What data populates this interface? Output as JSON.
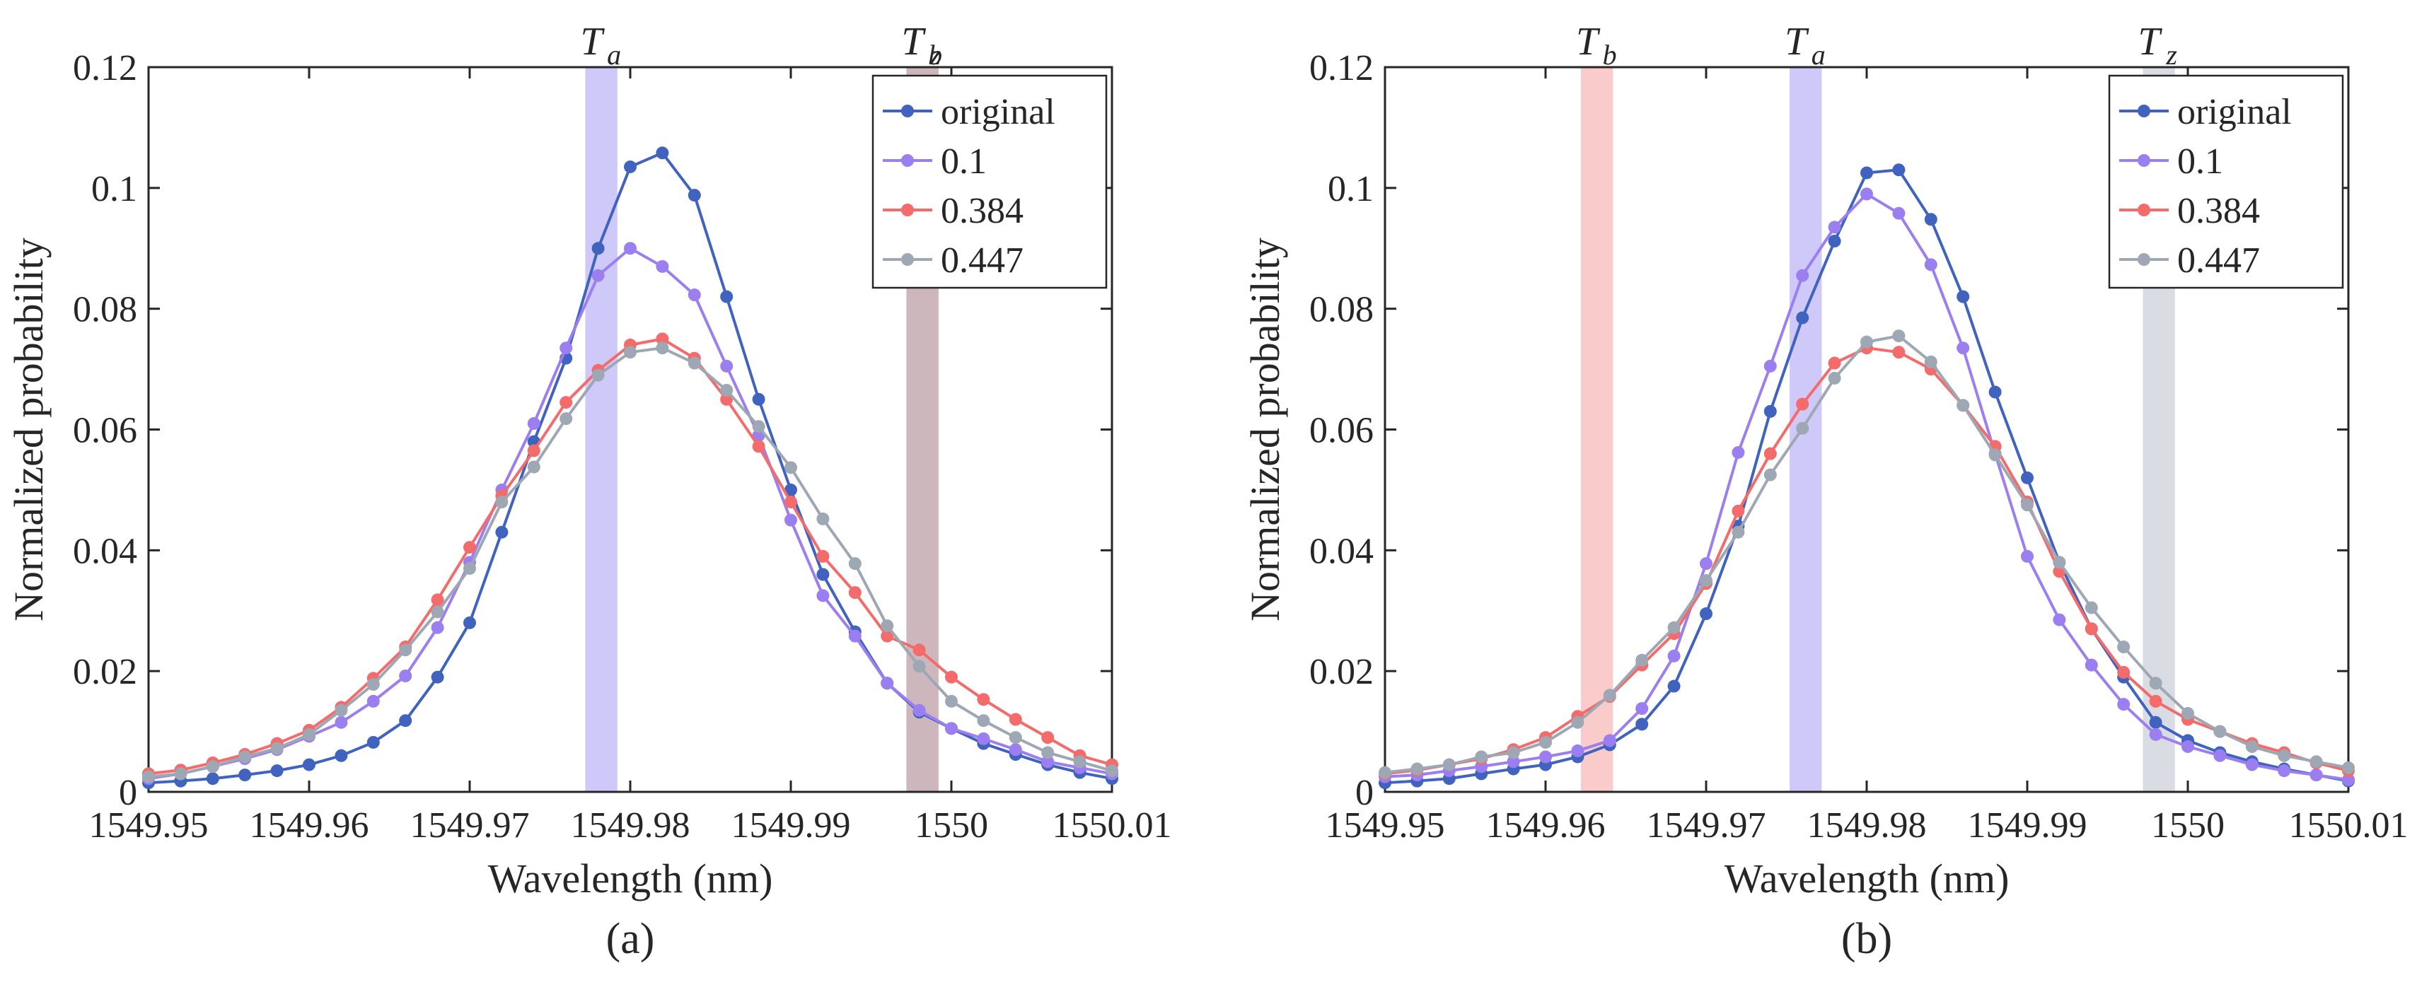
{
  "chart_data": [
    {
      "type": "line",
      "panel_label": "(a)",
      "xlabel": "Wavelength (nm)",
      "ylabel": "Normalized probability",
      "xlim": [
        1549.95,
        1550.01
      ],
      "ylim": [
        0,
        0.12
      ],
      "x_ticks": [
        "1549.95",
        "1549.96",
        "1549.97",
        "1549.98",
        "1549.99",
        "1550",
        "1550.01"
      ],
      "y_ticks": [
        "0",
        "0.02",
        "0.04",
        "0.06",
        "0.08",
        "0.1",
        "0.12"
      ],
      "legend_position": "top-right",
      "x": [
        1549.95,
        1549.952,
        1549.954,
        1549.956,
        1549.958,
        1549.96,
        1549.962,
        1549.964,
        1549.966,
        1549.968,
        1549.97,
        1549.972,
        1549.974,
        1549.976,
        1549.978,
        1549.98,
        1549.982,
        1549.984,
        1549.986,
        1549.988,
        1549.99,
        1549.992,
        1549.994,
        1549.996,
        1549.998,
        1550.0,
        1550.002,
        1550.004,
        1550.006,
        1550.008,
        1550.01
      ],
      "series": [
        {
          "name": "original",
          "color": "#4063c0",
          "values": [
            0.0015,
            0.0018,
            0.0022,
            0.0028,
            0.0035,
            0.0045,
            0.006,
            0.0082,
            0.0118,
            0.019,
            0.028,
            0.043,
            0.058,
            0.0718,
            0.09,
            0.1035,
            0.1058,
            0.0988,
            0.082,
            0.065,
            0.05,
            0.036,
            0.0265,
            0.018,
            0.0132,
            0.0105,
            0.008,
            0.0062,
            0.0045,
            0.0032,
            0.0022
          ]
        },
        {
          "name": "0.1",
          "color": "#9b7ff0",
          "values": [
            0.0022,
            0.003,
            0.0042,
            0.0055,
            0.007,
            0.0092,
            0.0115,
            0.015,
            0.0192,
            0.0272,
            0.038,
            0.05,
            0.061,
            0.0735,
            0.0855,
            0.09,
            0.087,
            0.0823,
            0.0705,
            0.059,
            0.045,
            0.0325,
            0.0258,
            0.018,
            0.0135,
            0.0105,
            0.0088,
            0.007,
            0.005,
            0.004,
            0.003
          ]
        },
        {
          "name": "0.384",
          "color": "#f36b6b",
          "values": [
            0.003,
            0.0036,
            0.0048,
            0.0062,
            0.008,
            0.0102,
            0.014,
            0.0188,
            0.024,
            0.0318,
            0.0405,
            0.049,
            0.0565,
            0.0645,
            0.0698,
            0.074,
            0.075,
            0.0718,
            0.065,
            0.0572,
            0.048,
            0.039,
            0.033,
            0.0258,
            0.0235,
            0.019,
            0.0153,
            0.012,
            0.009,
            0.006,
            0.0045
          ]
        },
        {
          "name": "0.447",
          "color": "#9ea7b4",
          "values": [
            0.0025,
            0.003,
            0.0042,
            0.0058,
            0.0072,
            0.0095,
            0.0135,
            0.0178,
            0.0235,
            0.0298,
            0.037,
            0.048,
            0.0538,
            0.0618,
            0.069,
            0.0728,
            0.0735,
            0.071,
            0.0665,
            0.0605,
            0.0537,
            0.0452,
            0.0378,
            0.0275,
            0.0208,
            0.015,
            0.0118,
            0.009,
            0.0065,
            0.005,
            0.0035
          ]
        }
      ],
      "bands": [
        {
          "label": "T",
          "sub": "a",
          "x_start": 1549.9772,
          "x_end": 1549.9792,
          "color": "#c7bff8"
        },
        {
          "label": "T",
          "sub": "b",
          "x_start": 1549.9972,
          "x_end": 1549.9992,
          "color": "#f9c2c2"
        },
        {
          "label": "T",
          "sub": "z",
          "x_start": 1549.9972,
          "x_end": 1549.9992,
          "color": "#c4b4ba"
        }
      ]
    },
    {
      "type": "line",
      "panel_label": "(b)",
      "xlabel": "Wavelength (nm)",
      "ylabel": "Normalized probability",
      "xlim": [
        1549.95,
        1550.01
      ],
      "ylim": [
        0,
        0.12
      ],
      "x_ticks": [
        "1549.95",
        "1549.96",
        "1549.97",
        "1549.98",
        "1549.99",
        "1550",
        "1550.01"
      ],
      "y_ticks": [
        "0",
        "0.02",
        "0.04",
        "0.06",
        "0.08",
        "0.1",
        "0.12"
      ],
      "legend_position": "top-right",
      "x": [
        1549.95,
        1549.952,
        1549.954,
        1549.956,
        1549.958,
        1549.96,
        1549.962,
        1549.964,
        1549.966,
        1549.968,
        1549.97,
        1549.972,
        1549.974,
        1549.976,
        1549.978,
        1549.98,
        1549.982,
        1549.984,
        1549.986,
        1549.988,
        1549.99,
        1549.992,
        1549.994,
        1549.996,
        1549.998,
        1550.0,
        1550.002,
        1550.004,
        1550.006,
        1550.008,
        1550.01
      ],
      "series": [
        {
          "name": "original",
          "color": "#4063c0",
          "values": [
            0.0015,
            0.0018,
            0.0022,
            0.003,
            0.0038,
            0.0045,
            0.0058,
            0.0078,
            0.0112,
            0.0175,
            0.0295,
            0.044,
            0.063,
            0.0785,
            0.0912,
            0.1025,
            0.103,
            0.0948,
            0.082,
            0.0662,
            0.052,
            0.038,
            0.027,
            0.019,
            0.0115,
            0.0085,
            0.0065,
            0.005,
            0.0038,
            0.0028,
            0.0018
          ]
        },
        {
          "name": "0.1",
          "color": "#9b7ff0",
          "values": [
            0.0025,
            0.0028,
            0.0035,
            0.0042,
            0.005,
            0.0058,
            0.0068,
            0.0085,
            0.0138,
            0.0225,
            0.0378,
            0.0562,
            0.0705,
            0.0855,
            0.0935,
            0.099,
            0.0958,
            0.0873,
            0.0735,
            0.056,
            0.039,
            0.0285,
            0.021,
            0.0145,
            0.0095,
            0.0075,
            0.006,
            0.0045,
            0.0035,
            0.0028,
            0.002
          ]
        },
        {
          "name": "0.384",
          "color": "#f36b6b",
          "values": [
            0.003,
            0.0036,
            0.0045,
            0.0055,
            0.007,
            0.009,
            0.0125,
            0.0158,
            0.021,
            0.0262,
            0.0345,
            0.0465,
            0.056,
            0.0642,
            0.071,
            0.0735,
            0.0728,
            0.07,
            0.064,
            0.0572,
            0.048,
            0.0365,
            0.027,
            0.0198,
            0.015,
            0.012,
            0.01,
            0.008,
            0.0065,
            0.0048,
            0.0035
          ]
        },
        {
          "name": "0.447",
          "color": "#9ea7b4",
          "values": [
            0.0032,
            0.0038,
            0.0045,
            0.0058,
            0.0065,
            0.0082,
            0.0115,
            0.016,
            0.0218,
            0.0272,
            0.035,
            0.043,
            0.0525,
            0.0602,
            0.0685,
            0.0745,
            0.0755,
            0.0712,
            0.064,
            0.0558,
            0.0475,
            0.038,
            0.0305,
            0.024,
            0.018,
            0.013,
            0.01,
            0.0075,
            0.006,
            0.005,
            0.004
          ]
        }
      ],
      "bands": [
        {
          "label": "T",
          "sub": "b",
          "x_start": 1549.9622,
          "x_end": 1549.9642,
          "color": "#f9c2c2"
        },
        {
          "label": "T",
          "sub": "a",
          "x_start": 1549.9752,
          "x_end": 1549.9772,
          "color": "#c7bff8"
        },
        {
          "label": "T",
          "sub": "z",
          "x_start": 1549.9972,
          "x_end": 1549.9992,
          "color": "#d3d6de"
        }
      ]
    }
  ]
}
